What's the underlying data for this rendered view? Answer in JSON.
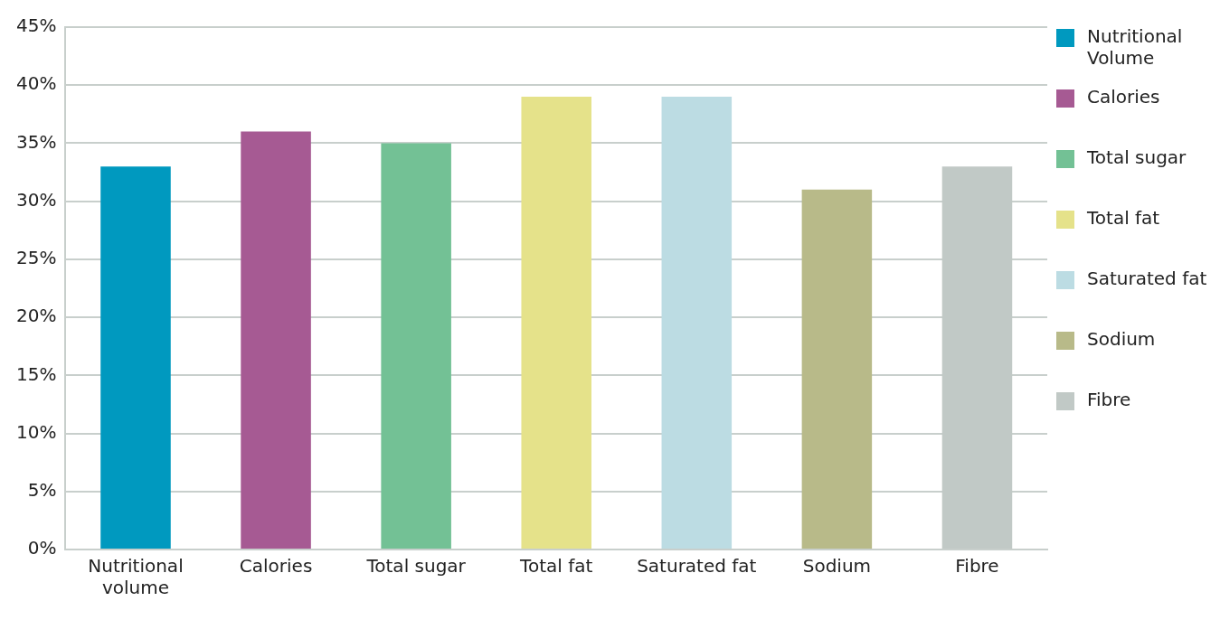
{
  "chart_data": {
    "type": "bar",
    "categories": [
      "Nutritional volume",
      "Calories",
      "Total sugar",
      "Total fat",
      "Saturated fat",
      "Sodium",
      "Fibre"
    ],
    "series": [
      {
        "name": "Nutritional Volume",
        "color": "#0099bf",
        "values": [
          33,
          null,
          null,
          null,
          null,
          null,
          null
        ]
      },
      {
        "name": "Calories",
        "color": "#a65a93",
        "values": [
          null,
          36,
          null,
          null,
          null,
          null,
          null
        ]
      },
      {
        "name": "Total sugar",
        "color": "#73c195",
        "values": [
          null,
          null,
          35,
          null,
          null,
          null,
          null
        ]
      },
      {
        "name": "Total fat",
        "color": "#e5e28a",
        "values": [
          null,
          null,
          null,
          39,
          null,
          null,
          null
        ]
      },
      {
        "name": "Saturated fat",
        "color": "#bcdce3",
        "values": [
          null,
          null,
          null,
          null,
          39,
          null,
          null
        ]
      },
      {
        "name": "Sodium",
        "color": "#b8ba89",
        "values": [
          null,
          null,
          null,
          null,
          null,
          31,
          null
        ]
      },
      {
        "name": "Fibre",
        "color": "#c1c9c6",
        "values": [
          null,
          null,
          null,
          null,
          null,
          null,
          33
        ]
      }
    ],
    "ylim": [
      0,
      45
    ],
    "yticks": [
      {
        "value": 0,
        "label": "0%"
      },
      {
        "value": 5,
        "label": "5%"
      },
      {
        "value": 10,
        "label": "10%"
      },
      {
        "value": 15,
        "label": "15%"
      },
      {
        "value": 20,
        "label": "20%"
      },
      {
        "value": 25,
        "label": "25%"
      },
      {
        "value": 30,
        "label": "30%"
      },
      {
        "value": 35,
        "label": "35%"
      },
      {
        "value": 40,
        "label": "40%"
      },
      {
        "value": 45,
        "label": "45%"
      }
    ],
    "grid": "y",
    "legend": "right"
  }
}
